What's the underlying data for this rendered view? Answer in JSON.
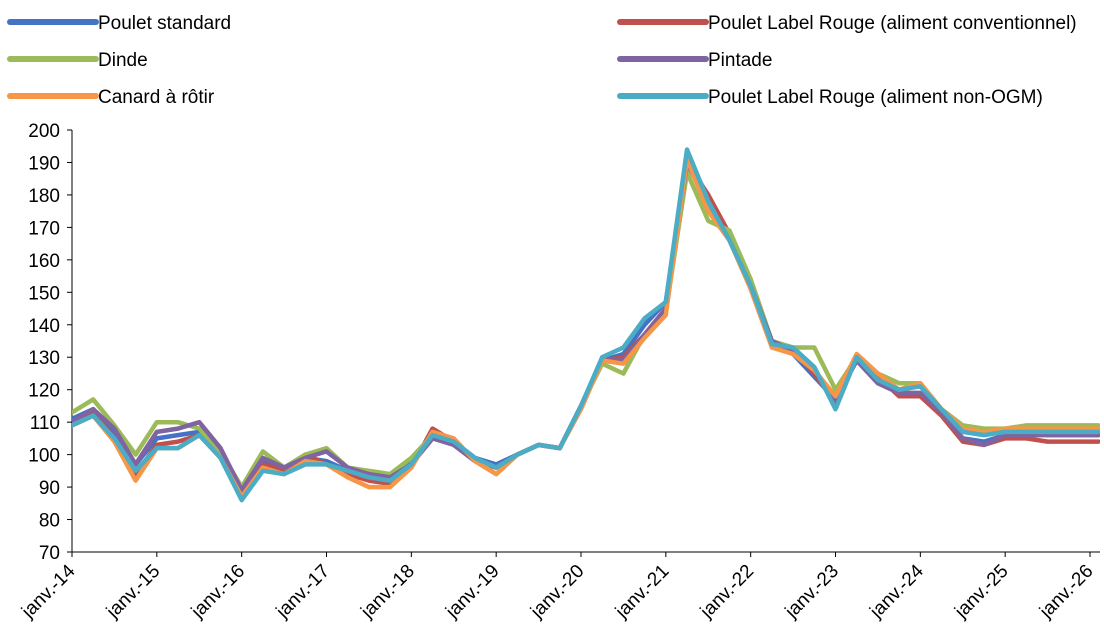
{
  "chart_data": {
    "type": "line",
    "x_tick_labels": [
      "janv.-14",
      "janv.-15",
      "janv.-16",
      "janv.-17",
      "janv.-18",
      "janv.-19",
      "janv.-20",
      "janv.-21",
      "janv.-22",
      "janv.-23",
      "janv.-24",
      "janv.-25",
      "janv.-26"
    ],
    "x_range": [
      2014.0,
      2026.1
    ],
    "ylim": [
      70,
      200
    ],
    "y_ticks": [
      70,
      80,
      90,
      100,
      110,
      120,
      130,
      140,
      150,
      160,
      170,
      180,
      190,
      200
    ],
    "grid": false,
    "legend_position": "top",
    "series": [
      {
        "name": "Poulet standard",
        "color": "#4472C4",
        "x": [
          2014.0,
          2014.25,
          2014.5,
          2014.75,
          2015.0,
          2015.25,
          2015.5,
          2015.75,
          2016.0,
          2016.25,
          2016.5,
          2016.75,
          2017.0,
          2017.25,
          2017.5,
          2017.75,
          2018.0,
          2018.25,
          2018.5,
          2018.75,
          2019.0,
          2019.25,
          2019.5,
          2019.75,
          2020.0,
          2020.25,
          2020.5,
          2020.75,
          2021.0,
          2021.25,
          2021.5,
          2021.75,
          2022.0,
          2022.25,
          2022.5,
          2022.75,
          2023.0,
          2023.25,
          2023.5,
          2023.75,
          2024.0,
          2024.25,
          2024.5,
          2024.75,
          2025.0,
          2025.25,
          2025.5,
          2025.75,
          2026.0,
          2026.1
        ],
        "values": [
          111,
          114,
          106,
          97,
          105,
          106,
          107,
          101,
          89,
          98,
          96,
          99,
          98,
          95,
          94,
          93,
          98,
          106,
          104,
          99,
          97,
          100,
          103,
          102,
          115,
          129,
          131,
          140,
          147,
          192,
          179,
          167,
          152,
          135,
          131,
          124,
          117,
          129,
          122,
          119,
          118,
          113,
          105,
          104,
          106,
          107,
          106,
          106,
          106,
          106
        ]
      },
      {
        "name": "Poulet Label Rouge (aliment conventionnel)",
        "color": "#C0504D",
        "x": [
          2014.0,
          2014.25,
          2014.5,
          2014.75,
          2015.0,
          2015.25,
          2015.5,
          2015.75,
          2016.0,
          2016.25,
          2016.5,
          2016.75,
          2017.0,
          2017.25,
          2017.5,
          2017.75,
          2018.0,
          2018.25,
          2018.5,
          2018.75,
          2019.0,
          2019.25,
          2019.5,
          2019.75,
          2020.0,
          2020.25,
          2020.5,
          2020.75,
          2021.0,
          2021.25,
          2021.5,
          2021.75,
          2022.0,
          2022.25,
          2022.5,
          2022.75,
          2023.0,
          2023.25,
          2023.5,
          2023.75,
          2024.0,
          2024.25,
          2024.5,
          2024.75,
          2025.0,
          2025.25,
          2025.5,
          2025.75,
          2026.0,
          2026.1
        ],
        "values": [
          110,
          113,
          105,
          94,
          103,
          104,
          106,
          100,
          89,
          97,
          95,
          100,
          97,
          94,
          92,
          91,
          96,
          108,
          104,
          98,
          96,
          100,
          103,
          102,
          115,
          129,
          130,
          137,
          145,
          190,
          180,
          168,
          153,
          134,
          132,
          125,
          116,
          130,
          124,
          118,
          118,
          112,
          104,
          103,
          105,
          105,
          104,
          104,
          104,
          104
        ]
      },
      {
        "name": "Dinde",
        "color": "#9BBB59",
        "x": [
          2014.0,
          2014.25,
          2014.5,
          2014.75,
          2015.0,
          2015.25,
          2015.5,
          2015.75,
          2016.0,
          2016.25,
          2016.5,
          2016.75,
          2017.0,
          2017.25,
          2017.5,
          2017.75,
          2018.0,
          2018.25,
          2018.5,
          2018.75,
          2019.0,
          2019.25,
          2019.5,
          2019.75,
          2020.0,
          2020.25,
          2020.5,
          2020.75,
          2021.0,
          2021.25,
          2021.5,
          2021.75,
          2022.0,
          2022.25,
          2022.5,
          2022.75,
          2023.0,
          2023.25,
          2023.5,
          2023.75,
          2024.0,
          2024.25,
          2024.5,
          2024.75,
          2025.0,
          2025.25,
          2025.5,
          2025.75,
          2026.0,
          2026.1
        ],
        "values": [
          113,
          117,
          109,
          100,
          110,
          110,
          108,
          101,
          90,
          101,
          96,
          100,
          102,
          96,
          95,
          94,
          99,
          106,
          103,
          98,
          94,
          100,
          103,
          102,
          115,
          128,
          125,
          137,
          144,
          187,
          172,
          169,
          154,
          135,
          133,
          133,
          120,
          130,
          125,
          122,
          122,
          114,
          109,
          108,
          108,
          109,
          109,
          109,
          109,
          109
        ]
      },
      {
        "name": "Pintade",
        "color": "#8064A2",
        "x": [
          2014.0,
          2014.25,
          2014.5,
          2014.75,
          2015.0,
          2015.25,
          2015.5,
          2015.75,
          2016.0,
          2016.25,
          2016.5,
          2016.75,
          2017.0,
          2017.25,
          2017.5,
          2017.75,
          2018.0,
          2018.25,
          2018.5,
          2018.75,
          2019.0,
          2019.25,
          2019.5,
          2019.75,
          2020.0,
          2020.25,
          2020.5,
          2020.75,
          2021.0,
          2021.25,
          2021.5,
          2021.75,
          2022.0,
          2022.25,
          2022.5,
          2022.75,
          2023.0,
          2023.25,
          2023.5,
          2023.75,
          2024.0,
          2024.25,
          2024.5,
          2024.75,
          2025.0,
          2025.25,
          2025.5,
          2025.75,
          2026.0,
          2026.1
        ],
        "values": [
          110,
          114,
          108,
          97,
          107,
          108,
          110,
          102,
          89,
          99,
          96,
          99,
          101,
          96,
          94,
          93,
          97,
          105,
          103,
          98,
          96,
          100,
          103,
          102,
          115,
          129,
          129,
          137,
          145,
          190,
          177,
          166,
          152,
          135,
          132,
          126,
          117,
          129,
          122,
          119,
          119,
          113,
          105,
          103,
          106,
          106,
          106,
          106,
          106,
          106
        ]
      },
      {
        "name": "Canard à rôtir",
        "color": "#F79646",
        "x": [
          2014.0,
          2014.25,
          2014.5,
          2014.75,
          2015.0,
          2015.25,
          2015.5,
          2015.75,
          2016.0,
          2016.25,
          2016.5,
          2016.75,
          2017.0,
          2017.25,
          2017.5,
          2017.75,
          2018.0,
          2018.25,
          2018.5,
          2018.75,
          2019.0,
          2019.25,
          2019.5,
          2019.75,
          2020.0,
          2020.25,
          2020.5,
          2020.75,
          2021.0,
          2021.25,
          2021.5,
          2021.75,
          2022.0,
          2022.25,
          2022.5,
          2022.75,
          2023.0,
          2023.25,
          2023.5,
          2023.75,
          2024.0,
          2024.25,
          2024.5,
          2024.75,
          2025.0,
          2025.25,
          2025.5,
          2025.75,
          2026.0,
          2026.1
        ],
        "values": [
          109,
          112,
          104,
          92,
          102,
          102,
          106,
          99,
          87,
          96,
          94,
          98,
          97,
          93,
          90,
          90,
          96,
          107,
          105,
          98,
          94,
          100,
          103,
          102,
          114,
          129,
          128,
          136,
          143,
          191,
          175,
          166,
          151,
          133,
          131,
          126,
          118,
          131,
          125,
          120,
          122,
          114,
          108,
          107,
          108,
          108,
          108,
          108,
          108,
          108
        ]
      },
      {
        "name": "Poulet Label Rouge (aliment non-OGM)",
        "color": "#4BACC6",
        "x": [
          2014.0,
          2014.25,
          2014.5,
          2014.75,
          2015.0,
          2015.25,
          2015.5,
          2015.75,
          2016.0,
          2016.25,
          2016.5,
          2016.75,
          2017.0,
          2017.25,
          2017.5,
          2017.75,
          2018.0,
          2018.25,
          2018.5,
          2018.75,
          2019.0,
          2019.25,
          2019.5,
          2019.75,
          2020.0,
          2020.25,
          2020.5,
          2020.75,
          2021.0,
          2021.25,
          2021.5,
          2021.75,
          2022.0,
          2022.25,
          2022.5,
          2022.75,
          2023.0,
          2023.25,
          2023.5,
          2023.75,
          2024.0,
          2024.25,
          2024.5,
          2024.75,
          2025.0,
          2025.25,
          2025.5,
          2025.75,
          2026.0,
          2026.1
        ],
        "values": [
          109,
          112,
          105,
          95,
          102,
          102,
          106,
          99,
          86,
          95,
          94,
          97,
          97,
          95,
          93,
          92,
          97,
          106,
          104,
          99,
          96,
          100,
          103,
          102,
          115,
          130,
          133,
          142,
          147,
          194,
          178,
          166,
          152,
          134,
          133,
          127,
          114,
          130,
          123,
          120,
          121,
          114,
          107,
          106,
          107,
          107,
          107,
          107,
          107,
          107
        ]
      }
    ]
  }
}
